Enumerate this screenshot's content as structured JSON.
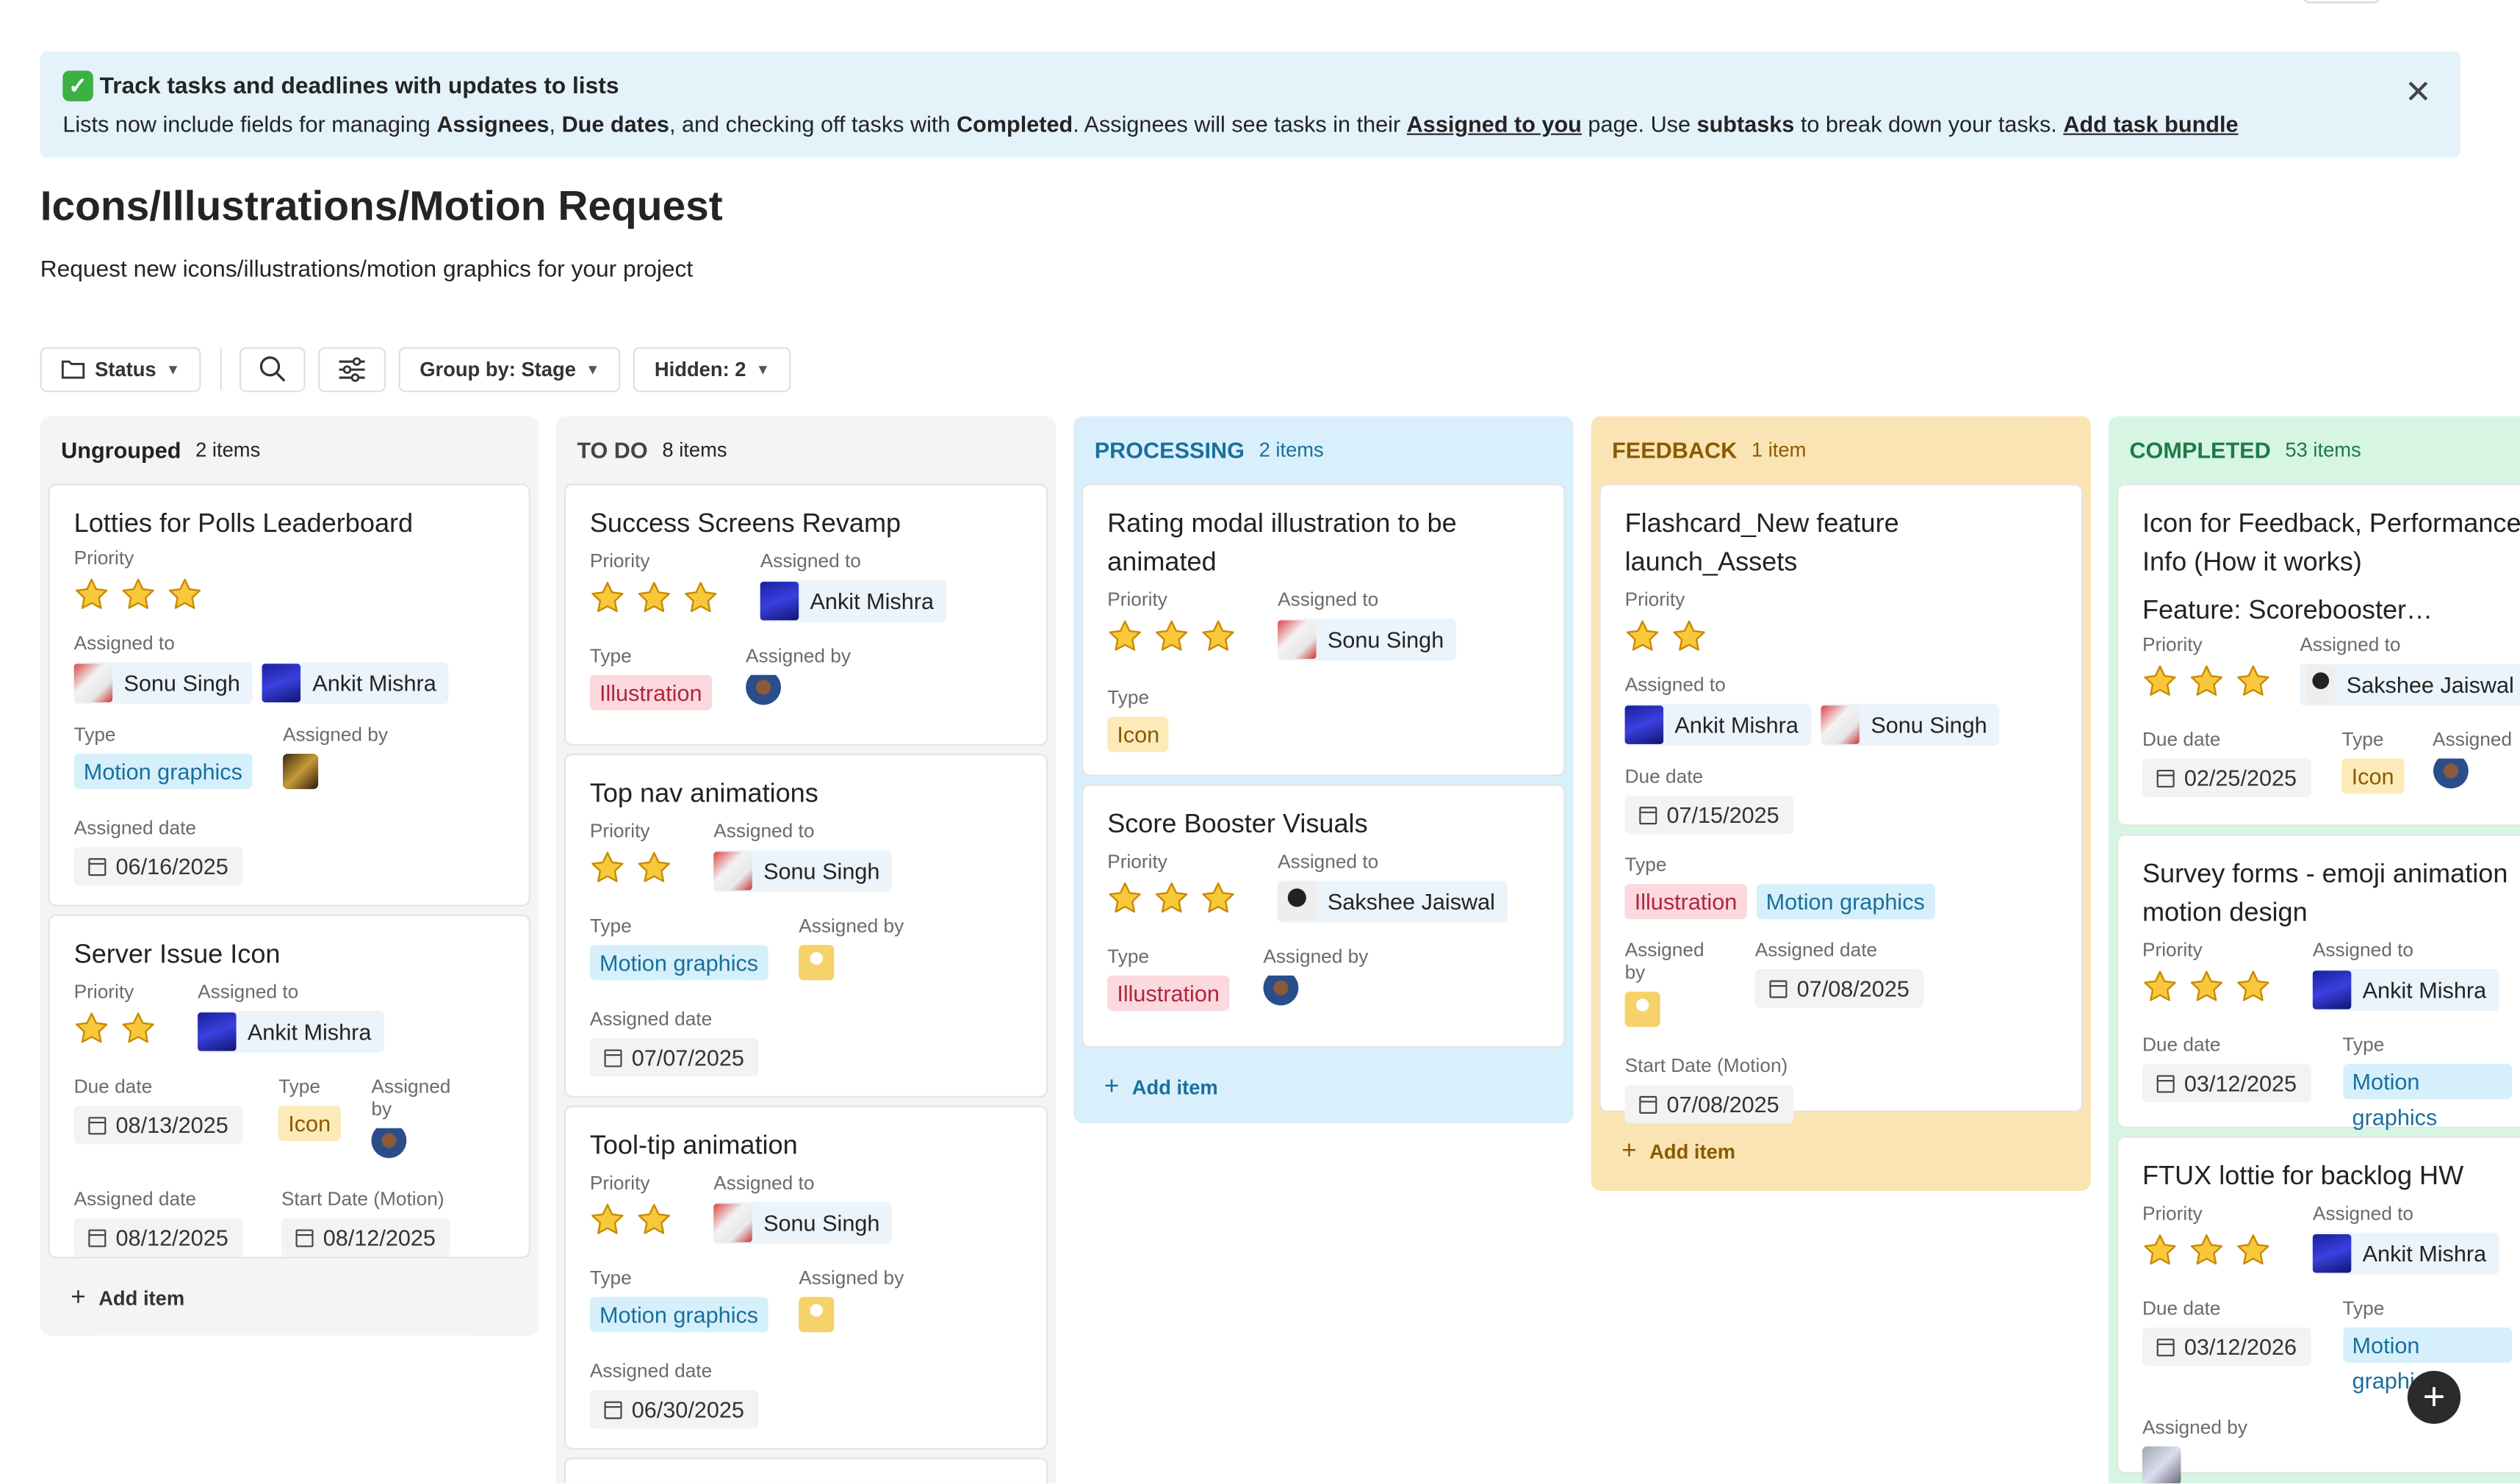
{
  "banner": {
    "title": "Track tasks and deadlines with updates to lists",
    "text_1": "Lists now include fields for managing ",
    "assignees": "Assignees",
    "comma": ", ",
    "due_dates": "Due dates",
    "text_2": ", and checking off tasks with ",
    "completed": "Completed",
    "text_3": ". Assignees will see tasks in their ",
    "assigned_link": "Assigned to you",
    "text_4": " page. Use ",
    "subtasks": "subtasks",
    "text_5": " to break down your tasks. ",
    "bundle_link": "Add task bundle",
    "close": "✕"
  },
  "page": {
    "title": "Icons/Illustrations/Motion Request",
    "description": "Request new icons/illustrations/motion graphics for your project"
  },
  "toolbar": {
    "status": "Status",
    "group_by": "Group by: Stage",
    "hidden": "Hidden: 2"
  },
  "labels": {
    "priority": "Priority",
    "assigned_to": "Assigned to",
    "assigned_by": "Assigned by",
    "type": "Type",
    "assigned_date": "Assigned date",
    "due_date": "Due date",
    "start_date_motion": "Start Date (Motion)",
    "add_item": "Add item"
  },
  "columns": [
    {
      "title": "Ungrouped",
      "count": "2 items"
    },
    {
      "title": "TO DO",
      "count": "8 items"
    },
    {
      "title": "PROCESSING",
      "count": "2 items"
    },
    {
      "title": "FEEDBACK",
      "count": "1 item"
    },
    {
      "title": "COMPLETED",
      "count": "53 items"
    }
  ],
  "cards": {
    "lotties": {
      "title": "Lotties for Polls Leaderboard",
      "stars": 3,
      "assignee_1": "Sonu Singh",
      "assignee_2": "Ankit Mishra",
      "type": "Motion graphics",
      "assigned_date": "06/16/2025"
    },
    "server": {
      "title": "Server Issue Icon",
      "stars": 2,
      "assignee": "Ankit Mishra",
      "due_date": "08/13/2025",
      "type": "Icon",
      "assigned_date": "08/12/2025",
      "start_date": "08/12/2025"
    },
    "success": {
      "title": "Success Screens Revamp",
      "stars": 3,
      "assignee": "Ankit Mishra",
      "type": "Illustration"
    },
    "topnav": {
      "title": "Top nav animations",
      "stars": 2,
      "assignee": "Sonu Singh",
      "type": "Motion graphics",
      "assigned_date": "07/07/2025"
    },
    "tooltip": {
      "title": "Tool-tip animation",
      "stars": 2,
      "assignee": "Sonu Singh",
      "type": "Motion graphics",
      "assigned_date": "06/30/2025"
    },
    "rating": {
      "title": "Rating modal illustration to be animated",
      "stars": 3,
      "assignee": "Sonu Singh",
      "type": "Icon"
    },
    "score": {
      "title": "Score Booster Visuals",
      "stars": 3,
      "assignee": "Sakshee Jaiswal",
      "type": "Illustration"
    },
    "flashcard": {
      "title": "Flashcard_New feature launch_Assets",
      "stars": 2,
      "assignee_1": "Ankit Mishra",
      "assignee_2": "Sonu Singh",
      "due_date": "07/15/2025",
      "type_1": "Illustration",
      "type_2": "Motion graphics",
      "assigned_date": "07/08/2025",
      "start_date": "07/08/2025"
    },
    "feedback_icon": {
      "title": "Icon for Feedback, Performance Info (How it works)",
      "subtitle": "Feature: Scorebooster…",
      "stars": 3,
      "assignee": "Sakshee Jaiswal",
      "due_date": "02/25/2025",
      "type": "Icon",
      "assigned_by_label": "Assigned"
    },
    "survey": {
      "title": "Survey forms - emoji animation motion design",
      "stars": 3,
      "assignee": "Ankit Mishra",
      "due_date": "03/12/2025",
      "type": "Motion graphics"
    },
    "ftux": {
      "title": "FTUX lottie for backlog HW",
      "stars": 3,
      "assignee": "Ankit Mishra",
      "due_date": "03/12/2026",
      "type": "Motion graphics"
    }
  },
  "fab": "+",
  "colors": {
    "processing": "#d9f0fc",
    "feedback": "#fae4b3",
    "completed": "#d7f5e3",
    "ungrouped": "#f4f4f4",
    "todo": "#f4f4f4"
  }
}
